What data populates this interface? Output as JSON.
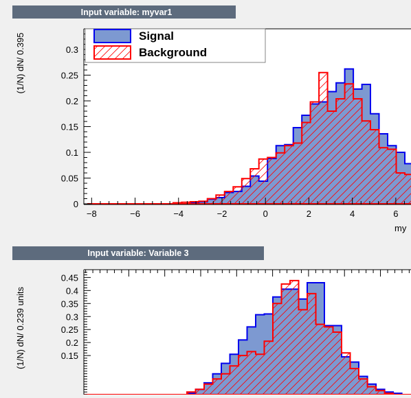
{
  "panels": [
    {
      "title": "Input variable: myvar1",
      "ylabel": "(1/N) dN/ 0.395",
      "xlabel": "my"
    },
    {
      "title": "Input variable: Variable 3",
      "ylabel": "(1/N) dN/ 0.239 units",
      "xlabel": ""
    }
  ],
  "legend": {
    "signal": "Signal",
    "background": "Background"
  },
  "colors": {
    "signal_fill": "#7d99d1",
    "signal_line": "#0000ee",
    "background_line": "#ff0000",
    "frame_bg": "#ffffff",
    "title_bar": "#5d6b7d"
  },
  "chart_data": [
    {
      "type": "histogram",
      "title": "Input variable: myvar1",
      "xlabel": "my",
      "ylabel": "(1/N) dN/ 0.395",
      "xlim": [
        -8.2,
        6.7
      ],
      "ylim": [
        0,
        0.34
      ],
      "xticks": [
        -8,
        -6,
        -4,
        -2,
        0,
        2,
        4,
        6
      ],
      "yticks": [
        0,
        0.05,
        0.1,
        0.15,
        0.2,
        0.25,
        0.3
      ],
      "ytick_labels": [
        "0",
        "0.05",
        "0.1",
        "0.15",
        "0.2",
        "0.25",
        "0.3"
      ],
      "bin_start": -8.2,
      "bin_width": 0.395,
      "series": [
        {
          "name": "Signal",
          "values": [
            0,
            0,
            0,
            0,
            0,
            0,
            0,
            0,
            0,
            0,
            0,
            0,
            0.002,
            0.004,
            0.009,
            0.012,
            0.022,
            0.024,
            0.034,
            0.054,
            0.044,
            0.088,
            0.113,
            0.115,
            0.148,
            0.172,
            0.194,
            0.198,
            0.218,
            0.235,
            0.262,
            0.223,
            0.232,
            0.175,
            0.136,
            0.113,
            0.1,
            0.078,
            0.055,
            0.04,
            0.028,
            0.018,
            0.012,
            0.009,
            0.007,
            0.004,
            0.003,
            0.002
          ]
        },
        {
          "name": "Background",
          "values": [
            0,
            0,
            0,
            0,
            0,
            0,
            0,
            0,
            0,
            0,
            0.002,
            0.003,
            0.004,
            0.005,
            0.01,
            0.017,
            0.024,
            0.033,
            0.049,
            0.068,
            0.087,
            0.09,
            0.099,
            0.113,
            0.118,
            0.158,
            0.198,
            0.255,
            0.18,
            0.204,
            0.233,
            0.204,
            0.161,
            0.144,
            0.109,
            0.106,
            0.06,
            0.057,
            0.044,
            0.027,
            0.016,
            0.008,
            0.006,
            0.004,
            0.002,
            0.001,
            0,
            0
          ]
        }
      ]
    },
    {
      "type": "histogram",
      "title": "Input variable: Variable 3",
      "xlabel": "",
      "ylabel": "(1/N) dN/ 0.239 units",
      "xlim": [
        -5.25,
        3.85
      ],
      "ylim": [
        0,
        0.48
      ],
      "yticks": [
        0.15,
        0.2,
        0.25,
        0.3,
        0.35,
        0.4,
        0.45
      ],
      "ytick_labels": [
        "0.15",
        "0.2",
        "0.25",
        "0.3",
        "0.35",
        "0.4",
        "0.45"
      ],
      "bin_start": -5.25,
      "bin_width": 0.239,
      "series": [
        {
          "name": "Signal",
          "values": [
            0,
            0,
            0,
            0,
            0,
            0,
            0,
            0,
            0,
            0,
            0,
            0,
            0.005,
            0.02,
            0.045,
            0.08,
            0.12,
            0.155,
            0.21,
            0.26,
            0.307,
            0.31,
            0.375,
            0.405,
            0.405,
            0.367,
            0.43,
            0.43,
            0.265,
            0.265,
            0.145,
            0.125,
            0.07,
            0.04,
            0.02,
            0.01,
            0.005,
            0,
            0
          ]
        },
        {
          "name": "Background",
          "values": [
            0,
            0,
            0,
            0,
            0,
            0,
            0,
            0,
            0,
            0,
            0,
            0,
            0.01,
            0.02,
            0.04,
            0.06,
            0.08,
            0.11,
            0.15,
            0.165,
            0.155,
            0.205,
            0.35,
            0.425,
            0.438,
            0.326,
            0.388,
            0.27,
            0.26,
            0.24,
            0.16,
            0.1,
            0.06,
            0.03,
            0.015,
            0.005,
            0,
            0,
            0
          ]
        }
      ]
    }
  ]
}
